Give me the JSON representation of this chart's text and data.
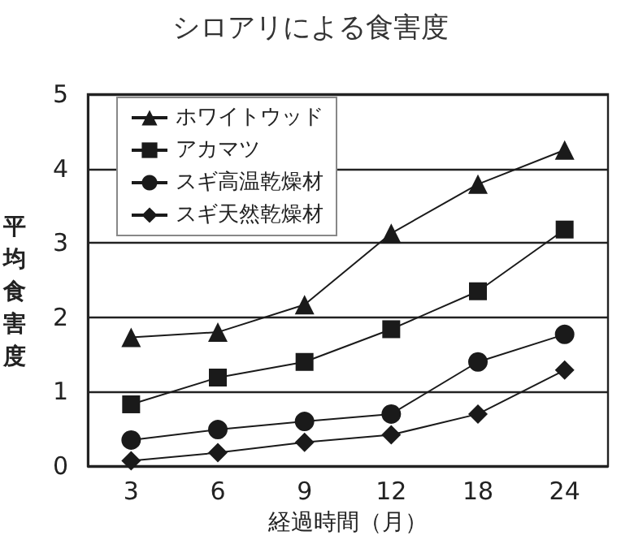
{
  "chart_data": {
    "type": "line",
    "title": "シロアリによる食害度",
    "xlabel": "経過時間（月）",
    "ylabel": "平均食害度",
    "categories": [
      "3",
      "6",
      "9",
      "12",
      "18",
      "24"
    ],
    "ylim": [
      0,
      5
    ],
    "yticks": [
      0,
      1,
      2,
      3,
      4,
      5
    ],
    "grid": "y",
    "legend": "top left",
    "line_style": "solid",
    "series": [
      {
        "name": "ホワイトウッド",
        "color": "#1a1a1a",
        "marker": "triangle",
        "values": [
          1.73,
          1.8,
          2.17,
          3.13,
          3.79,
          4.25
        ]
      },
      {
        "name": "アカマツ",
        "color": "#1a1a1a",
        "marker": "square",
        "values": [
          0.83,
          1.19,
          1.4,
          1.84,
          2.35,
          3.18
        ]
      },
      {
        "name": "スギ高温乾燥材",
        "color": "#1a1a1a",
        "marker": "circle",
        "values": [
          0.35,
          0.49,
          0.6,
          0.7,
          1.4,
          1.77
        ]
      },
      {
        "name": "スギ天然乾燥材",
        "color": "#1a1a1a",
        "marker": "diamond",
        "values": [
          0.07,
          0.18,
          0.32,
          0.42,
          0.7,
          1.29
        ]
      }
    ]
  }
}
